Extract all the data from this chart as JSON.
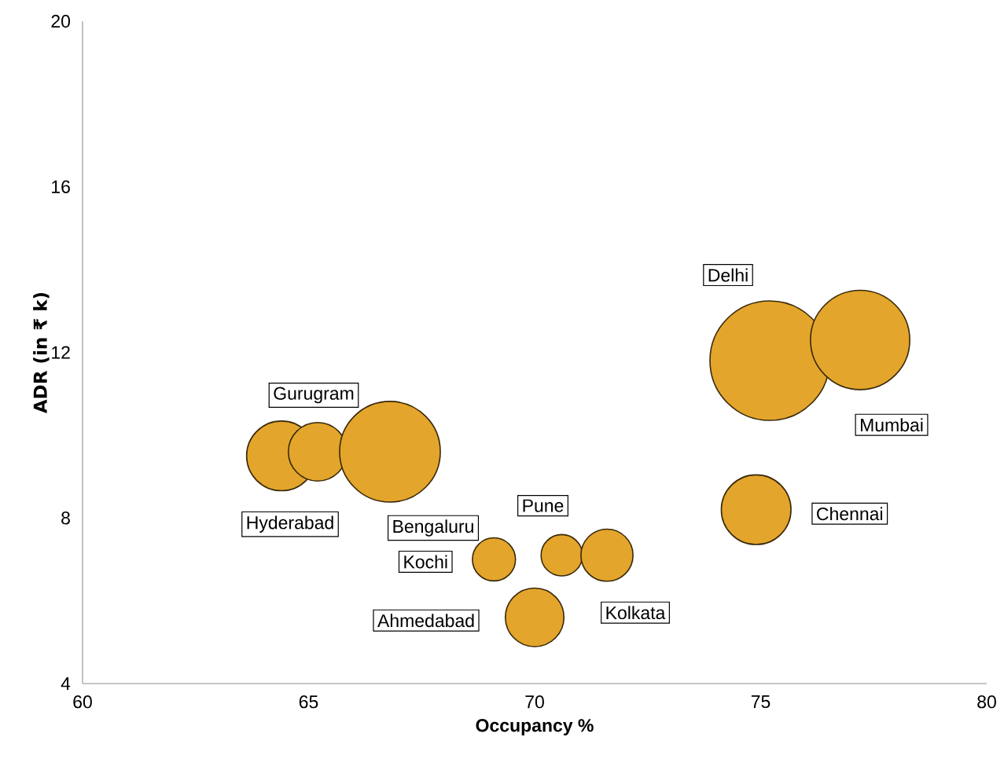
{
  "chart_data": {
    "type": "bubble",
    "xlabel": "Occupancy %",
    "ylabel": "ADR (in ₹ k)",
    "xlim": [
      60,
      80
    ],
    "ylim": [
      4,
      20
    ],
    "xticks": [
      60,
      65,
      70,
      75,
      80
    ],
    "yticks": [
      4,
      8,
      12,
      16,
      20
    ],
    "series": [
      {
        "color": "#e3a52b",
        "x": [
          64.4,
          65.2,
          66.8,
          69.1,
          70.6,
          71.6,
          70.0,
          74.9,
          75.2,
          77.2
        ],
        "values": [
          9.5,
          9.6,
          9.6,
          7.0,
          7.1,
          7.1,
          5.6,
          8.2,
          11.8,
          12.3
        ],
        "sizes": [
          0.34,
          0.24,
          0.71,
          0.13,
          0.12,
          0.19,
          0.24,
          0.34,
          1,
          0.69
        ]
      }
    ],
    "annotations": [
      "Hyderabad",
      "Gurugram",
      "Bengaluru",
      "Kochi",
      "Pune",
      "Kolkata",
      "Ahmedabad",
      "Chennai",
      "Delhi",
      "Mumbai"
    ]
  }
}
